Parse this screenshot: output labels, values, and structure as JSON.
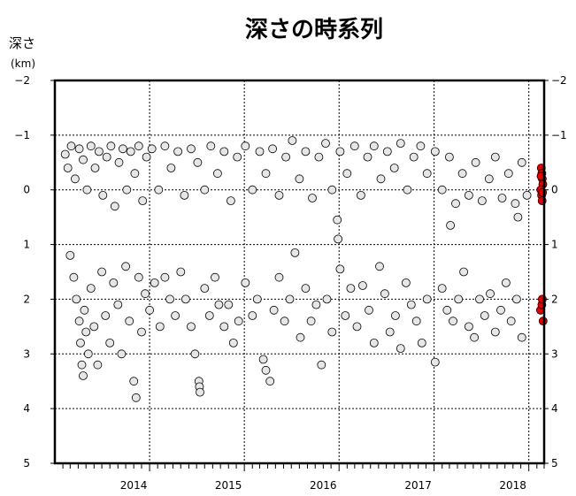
{
  "chart_data": {
    "type": "scatter",
    "title": "深さの時系列",
    "ylabel": "深さ",
    "yunit": "(km)",
    "y_inverted": true,
    "ylim": [
      -2,
      5
    ],
    "xlim": [
      "2013-01-01",
      "2018-03-01"
    ],
    "yticks": [
      "−2",
      "−1",
      "0",
      "1",
      "2",
      "3",
      "4",
      "5"
    ],
    "year_labels": [
      "2014",
      "2015",
      "2016",
      "2017",
      "2018"
    ],
    "grid": true,
    "colors": {
      "past": "#e6e6e6",
      "recent": "#e60000",
      "edge": "#000000"
    },
    "series": [
      {
        "points": [
          [
            "2013-02-10",
            -0.65
          ],
          [
            "2013-02-20",
            -0.4
          ],
          [
            "2013-03-05",
            -0.8
          ],
          [
            "2013-03-20",
            -0.2
          ],
          [
            "2013-04-05",
            -0.75
          ],
          [
            "2013-04-20",
            -0.55
          ],
          [
            "2013-05-05",
            0.0
          ],
          [
            "2013-05-20",
            -0.8
          ],
          [
            "2013-06-05",
            -0.4
          ],
          [
            "2013-06-20",
            -0.7
          ],
          [
            "2013-07-05",
            0.1
          ],
          [
            "2013-07-20",
            -0.6
          ],
          [
            "2013-08-05",
            -0.8
          ],
          [
            "2013-08-20",
            0.3
          ],
          [
            "2013-09-05",
            -0.5
          ],
          [
            "2013-09-20",
            -0.75
          ],
          [
            "2013-10-05",
            0.0
          ],
          [
            "2013-10-20",
            -0.7
          ],
          [
            "2013-11-05",
            -0.3
          ],
          [
            "2013-11-20",
            -0.8
          ],
          [
            "2013-12-05",
            0.2
          ],
          [
            "2013-12-20",
            -0.6
          ],
          [
            "2014-01-10",
            -0.75
          ],
          [
            "2014-02-05",
            0.0
          ],
          [
            "2014-03-01",
            -0.8
          ],
          [
            "2014-03-25",
            -0.4
          ],
          [
            "2014-04-20",
            -0.7
          ],
          [
            "2014-05-15",
            0.1
          ],
          [
            "2014-06-10",
            -0.75
          ],
          [
            "2014-07-05",
            -0.5
          ],
          [
            "2014-08-01",
            0.0
          ],
          [
            "2014-08-25",
            -0.8
          ],
          [
            "2014-09-20",
            -0.3
          ],
          [
            "2014-10-15",
            -0.7
          ],
          [
            "2014-11-10",
            0.2
          ],
          [
            "2014-12-05",
            -0.6
          ],
          [
            "2015-01-05",
            -0.8
          ],
          [
            "2015-02-01",
            0.0
          ],
          [
            "2015-03-01",
            -0.7
          ],
          [
            "2015-03-25",
            -0.3
          ],
          [
            "2015-04-20",
            -0.75
          ],
          [
            "2015-05-15",
            0.1
          ],
          [
            "2015-06-10",
            -0.6
          ],
          [
            "2015-07-05",
            -0.9
          ],
          [
            "2015-08-01",
            -0.2
          ],
          [
            "2015-08-25",
            -0.7
          ],
          [
            "2015-09-20",
            0.15
          ],
          [
            "2015-10-15",
            -0.6
          ],
          [
            "2015-11-10",
            -0.85
          ],
          [
            "2015-12-05",
            0.0
          ],
          [
            "2016-01-05",
            -0.7
          ],
          [
            "2016-02-01",
            -0.3
          ],
          [
            "2016-03-01",
            -0.8
          ],
          [
            "2016-03-25",
            0.1
          ],
          [
            "2016-04-20",
            -0.6
          ],
          [
            "2016-05-15",
            -0.8
          ],
          [
            "2016-06-10",
            -0.2
          ],
          [
            "2016-07-05",
            -0.7
          ],
          [
            "2016-08-01",
            -0.4
          ],
          [
            "2016-08-25",
            -0.85
          ],
          [
            "2016-09-20",
            0.0
          ],
          [
            "2016-10-15",
            -0.6
          ],
          [
            "2016-11-10",
            -0.8
          ],
          [
            "2016-12-05",
            -0.3
          ],
          [
            "2017-01-05",
            -0.7
          ],
          [
            "2017-02-01",
            0.0
          ],
          [
            "2017-03-01",
            -0.6
          ],
          [
            "2017-03-25",
            0.25
          ],
          [
            "2017-04-20",
            -0.3
          ],
          [
            "2017-05-15",
            0.1
          ],
          [
            "2017-06-10",
            -0.5
          ],
          [
            "2017-07-05",
            0.2
          ],
          [
            "2017-08-01",
            -0.2
          ],
          [
            "2017-08-25",
            -0.6
          ],
          [
            "2017-09-20",
            0.15
          ],
          [
            "2017-10-15",
            -0.3
          ],
          [
            "2017-11-10",
            0.25
          ],
          [
            "2017-12-05",
            -0.5
          ],
          [
            "2017-12-25",
            0.1
          ],
          [
            "2015-12-25",
            0.55
          ],
          [
            "2015-12-28",
            0.9
          ],
          [
            "2017-03-05",
            0.65
          ],
          [
            "2017-11-20",
            0.5
          ],
          [
            "2013-03-01",
            1.2
          ],
          [
            "2013-03-15",
            1.6
          ],
          [
            "2013-03-25",
            2.0
          ],
          [
            "2013-04-05",
            2.4
          ],
          [
            "2013-04-10",
            2.8
          ],
          [
            "2013-04-15",
            3.2
          ],
          [
            "2013-04-20",
            3.4
          ],
          [
            "2013-04-25",
            2.2
          ],
          [
            "2013-05-01",
            2.6
          ],
          [
            "2013-05-10",
            3.0
          ],
          [
            "2013-05-20",
            1.8
          ],
          [
            "2013-06-01",
            2.5
          ],
          [
            "2013-06-15",
            3.2
          ],
          [
            "2013-07-01",
            1.5
          ],
          [
            "2013-07-15",
            2.3
          ],
          [
            "2013-08-01",
            2.8
          ],
          [
            "2013-08-15",
            1.7
          ],
          [
            "2013-09-01",
            2.1
          ],
          [
            "2013-09-15",
            3.0
          ],
          [
            "2013-10-01",
            1.4
          ],
          [
            "2013-10-15",
            2.4
          ],
          [
            "2013-11-01",
            3.5
          ],
          [
            "2013-11-10",
            3.8
          ],
          [
            "2013-11-20",
            1.6
          ],
          [
            "2013-12-01",
            2.6
          ],
          [
            "2013-12-15",
            1.9
          ],
          [
            "2014-01-01",
            2.2
          ],
          [
            "2014-01-20",
            1.7
          ],
          [
            "2014-02-10",
            2.5
          ],
          [
            "2014-03-01",
            1.6
          ],
          [
            "2014-03-20",
            2.0
          ],
          [
            "2014-04-10",
            2.3
          ],
          [
            "2014-05-01",
            1.5
          ],
          [
            "2014-05-20",
            2.0
          ],
          [
            "2014-06-10",
            2.5
          ],
          [
            "2014-06-25",
            3.0
          ],
          [
            "2014-07-10",
            3.5
          ],
          [
            "2014-07-12",
            3.6
          ],
          [
            "2014-07-14",
            3.7
          ],
          [
            "2014-08-01",
            1.8
          ],
          [
            "2014-08-20",
            2.3
          ],
          [
            "2014-09-10",
            1.6
          ],
          [
            "2014-09-25",
            2.1
          ],
          [
            "2014-10-15",
            2.5
          ],
          [
            "2014-11-01",
            2.1
          ],
          [
            "2014-11-20",
            2.8
          ],
          [
            "2014-12-10",
            2.4
          ],
          [
            "2015-01-05",
            1.7
          ],
          [
            "2015-02-01",
            2.3
          ],
          [
            "2015-02-20",
            2.0
          ],
          [
            "2015-03-15",
            3.1
          ],
          [
            "2015-03-25",
            3.3
          ],
          [
            "2015-04-10",
            3.5
          ],
          [
            "2015-04-25",
            2.2
          ],
          [
            "2015-05-15",
            1.6
          ],
          [
            "2015-06-05",
            2.4
          ],
          [
            "2015-06-25",
            2.0
          ],
          [
            "2015-07-15",
            1.15
          ],
          [
            "2015-08-05",
            2.7
          ],
          [
            "2015-08-25",
            1.8
          ],
          [
            "2015-09-15",
            2.4
          ],
          [
            "2015-10-05",
            2.1
          ],
          [
            "2015-10-25",
            3.2
          ],
          [
            "2015-11-15",
            2.0
          ],
          [
            "2015-12-05",
            2.6
          ],
          [
            "2016-01-05",
            1.45
          ],
          [
            "2016-01-25",
            2.3
          ],
          [
            "2016-02-15",
            1.8
          ],
          [
            "2016-03-10",
            2.5
          ],
          [
            "2016-04-01",
            1.75
          ],
          [
            "2016-04-25",
            2.2
          ],
          [
            "2016-05-15",
            2.8
          ],
          [
            "2016-06-05",
            1.4
          ],
          [
            "2016-06-25",
            1.9
          ],
          [
            "2016-07-15",
            2.6
          ],
          [
            "2016-08-05",
            2.3
          ],
          [
            "2016-08-25",
            2.9
          ],
          [
            "2016-09-15",
            1.7
          ],
          [
            "2016-10-05",
            2.1
          ],
          [
            "2016-10-25",
            2.4
          ],
          [
            "2016-11-15",
            2.8
          ],
          [
            "2016-12-05",
            2.0
          ],
          [
            "2017-01-05",
            3.15
          ],
          [
            "2017-02-01",
            1.8
          ],
          [
            "2017-02-20",
            2.2
          ],
          [
            "2017-03-15",
            2.4
          ],
          [
            "2017-04-05",
            2.0
          ],
          [
            "2017-04-25",
            1.5
          ],
          [
            "2017-05-15",
            2.5
          ],
          [
            "2017-06-05",
            2.7
          ],
          [
            "2017-06-25",
            2.0
          ],
          [
            "2017-07-15",
            2.3
          ],
          [
            "2017-08-05",
            1.9
          ],
          [
            "2017-08-25",
            2.6
          ],
          [
            "2017-09-15",
            2.2
          ],
          [
            "2017-10-05",
            1.7
          ],
          [
            "2017-10-25",
            2.4
          ],
          [
            "2017-11-15",
            2.0
          ],
          [
            "2017-12-05",
            2.7
          ]
        ]
      },
      {
        "points": [
          [
            "2018-02-18",
            -0.4
          ],
          [
            "2018-02-20",
            -0.3
          ],
          [
            "2018-02-22",
            -0.2
          ],
          [
            "2018-02-24",
            -0.1
          ],
          [
            "2018-02-16",
            0.0
          ],
          [
            "2018-02-19",
            0.1
          ],
          [
            "2018-02-21",
            0.2
          ],
          [
            "2018-02-17",
            -0.25
          ],
          [
            "2018-02-23",
            0.05
          ],
          [
            "2018-02-15",
            2.2
          ],
          [
            "2018-02-20",
            2.1
          ],
          [
            "2018-02-25",
            2.4
          ],
          [
            "2018-02-22",
            2.0
          ]
        ]
      }
    ]
  }
}
